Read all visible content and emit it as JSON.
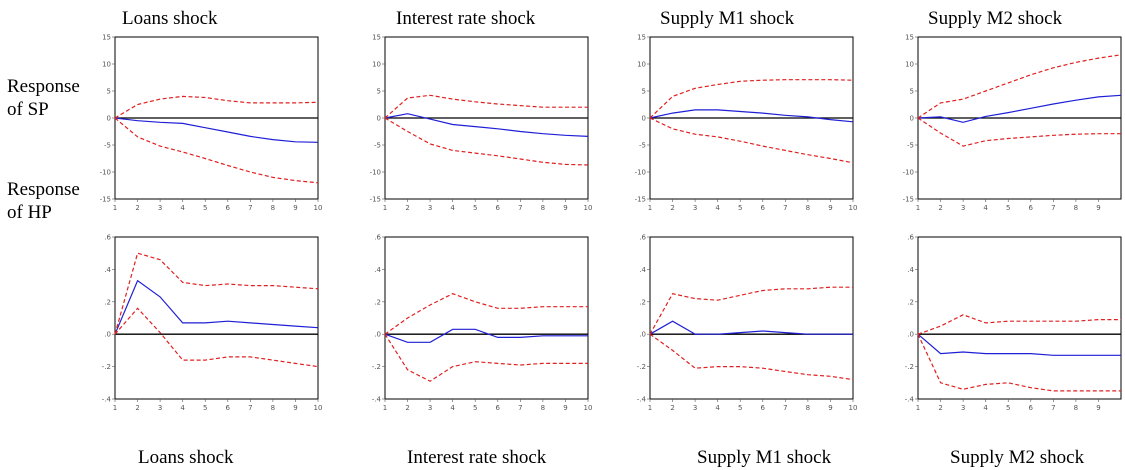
{
  "column_titles": [
    "Loans shock",
    "Interest rate shock",
    "Supply M1 shock",
    "Supply M2 shock"
  ],
  "bottom_titles": [
    "Loans shock",
    "Interest rate shock",
    "Supply M1 shock",
    "Supply M2 shock"
  ],
  "row_labels": [
    {
      "line1": "Response",
      "line2": "of SP"
    },
    {
      "line1": "Response",
      "line2": "of HP"
    }
  ],
  "colors": {
    "response": "#1f1fd6",
    "band": "#e02020",
    "zero_line": "#000000",
    "frame": "#000000"
  },
  "chart_data": [
    {
      "type": "line",
      "row": "Response of SP",
      "column": "Loans shock",
      "x": [
        1,
        2,
        3,
        4,
        5,
        6,
        7,
        8,
        9,
        10
      ],
      "xticks": [
        "1",
        "2",
        "3",
        "4",
        "5",
        "6",
        "7",
        "8",
        "9",
        "10"
      ],
      "yticks": [
        "15",
        "10",
        "5",
        "0",
        "-5",
        "-10",
        "-15"
      ],
      "ylim": [
        -15,
        15
      ],
      "series": [
        {
          "role": "response",
          "values": [
            0,
            -0.5,
            -0.8,
            -1.0,
            -1.8,
            -2.6,
            -3.4,
            -4.0,
            -4.4,
            -4.5
          ]
        },
        {
          "role": "upper",
          "values": [
            0,
            2.5,
            3.5,
            4.0,
            3.8,
            3.2,
            2.8,
            2.8,
            2.8,
            2.9
          ]
        },
        {
          "role": "lower",
          "values": [
            0,
            -3.5,
            -5.2,
            -6.3,
            -7.5,
            -8.8,
            -10.0,
            -11.0,
            -11.6,
            -12.0
          ]
        }
      ]
    },
    {
      "type": "line",
      "row": "Response of SP",
      "column": "Interest rate shock",
      "x": [
        1,
        2,
        3,
        4,
        5,
        6,
        7,
        8,
        9,
        10
      ],
      "xticks": [
        "1",
        "2",
        "3",
        "4",
        "5",
        "6",
        "7",
        "8",
        "9",
        "10"
      ],
      "yticks": [
        "15",
        "10",
        "5",
        "0",
        "-5",
        "-10",
        "-15"
      ],
      "ylim": [
        -15,
        15
      ],
      "series": [
        {
          "role": "response",
          "values": [
            0,
            0.8,
            -0.2,
            -1.2,
            -1.6,
            -2.0,
            -2.5,
            -2.9,
            -3.2,
            -3.4
          ]
        },
        {
          "role": "upper",
          "values": [
            0,
            3.7,
            4.2,
            3.5,
            3.0,
            2.6,
            2.3,
            2.0,
            2.0,
            2.0
          ]
        },
        {
          "role": "lower",
          "values": [
            0,
            -2.5,
            -4.8,
            -6.0,
            -6.5,
            -7.0,
            -7.6,
            -8.2,
            -8.6,
            -8.7
          ]
        }
      ]
    },
    {
      "type": "line",
      "row": "Response of SP",
      "column": "Supply M1 shock",
      "x": [
        1,
        2,
        3,
        4,
        5,
        6,
        7,
        8,
        9,
        10
      ],
      "xticks": [
        "1",
        "2",
        "3",
        "4",
        "5",
        "6",
        "7",
        "8",
        "9",
        "10"
      ],
      "yticks": [
        "15",
        "10",
        "5",
        "0",
        "-5",
        "-10",
        "-15"
      ],
      "ylim": [
        -15,
        15
      ],
      "series": [
        {
          "role": "response",
          "values": [
            0,
            0.9,
            1.5,
            1.5,
            1.2,
            0.9,
            0.5,
            0.2,
            -0.3,
            -0.7
          ]
        },
        {
          "role": "upper",
          "values": [
            0,
            4.0,
            5.5,
            6.2,
            6.8,
            7.0,
            7.1,
            7.1,
            7.1,
            7.0
          ]
        },
        {
          "role": "lower",
          "values": [
            0,
            -2.0,
            -3.0,
            -3.5,
            -4.3,
            -5.2,
            -6.0,
            -6.8,
            -7.5,
            -8.3
          ]
        }
      ]
    },
    {
      "type": "line",
      "row": "Response of SP",
      "column": "Supply M2 shock",
      "x": [
        1,
        2,
        3,
        4,
        5,
        6,
        7,
        8,
        9,
        10
      ],
      "xticks": [
        "1",
        "2",
        "3",
        "4",
        "5",
        "6",
        "7",
        "8",
        "9"
      ],
      "yticks": [
        "15",
        "10",
        "5",
        "0",
        "-5",
        "-10",
        "-15"
      ],
      "ylim": [
        -15,
        15
      ],
      "series": [
        {
          "role": "response",
          "values": [
            0,
            0.2,
            -0.8,
            0.3,
            1.0,
            1.8,
            2.6,
            3.3,
            3.9,
            4.2
          ]
        },
        {
          "role": "upper",
          "values": [
            0,
            2.8,
            3.5,
            5.0,
            6.5,
            8.0,
            9.3,
            10.3,
            11.1,
            11.7
          ]
        },
        {
          "role": "lower",
          "values": [
            0,
            -2.8,
            -5.2,
            -4.2,
            -3.8,
            -3.5,
            -3.2,
            -3.0,
            -2.9,
            -2.9
          ]
        }
      ]
    },
    {
      "type": "line",
      "row": "Response of HP",
      "column": "Loans shock",
      "x": [
        1,
        2,
        3,
        4,
        5,
        6,
        7,
        8,
        9,
        10
      ],
      "xticks": [
        "1",
        "2",
        "3",
        "4",
        "5",
        "6",
        "7",
        "8",
        "9",
        "10"
      ],
      "yticks": [
        ".6",
        ".4",
        ".2",
        ".0",
        "-.2",
        "-.4"
      ],
      "ylim": [
        -0.4,
        0.6
      ],
      "series": [
        {
          "role": "response",
          "values": [
            0,
            0.33,
            0.23,
            0.07,
            0.07,
            0.08,
            0.07,
            0.06,
            0.05,
            0.04
          ]
        },
        {
          "role": "upper",
          "values": [
            0,
            0.5,
            0.46,
            0.32,
            0.3,
            0.31,
            0.3,
            0.3,
            0.29,
            0.28
          ]
        },
        {
          "role": "lower",
          "values": [
            0,
            0.16,
            0.01,
            -0.16,
            -0.16,
            -0.14,
            -0.14,
            -0.16,
            -0.18,
            -0.2
          ]
        }
      ]
    },
    {
      "type": "line",
      "row": "Response of HP",
      "column": "Interest rate shock",
      "x": [
        1,
        2,
        3,
        4,
        5,
        6,
        7,
        8,
        9,
        10
      ],
      "xticks": [
        "1",
        "2",
        "3",
        "4",
        "5",
        "6",
        "7",
        "8",
        "9",
        "10"
      ],
      "yticks": [
        ".6",
        ".4",
        ".2",
        ".0",
        "-.2",
        "-.4"
      ],
      "ylim": [
        -0.4,
        0.6
      ],
      "series": [
        {
          "role": "response",
          "values": [
            0,
            -0.05,
            -0.05,
            0.03,
            0.03,
            -0.02,
            -0.02,
            -0.01,
            -0.01,
            -0.01
          ]
        },
        {
          "role": "upper",
          "values": [
            0,
            0.1,
            0.18,
            0.25,
            0.2,
            0.16,
            0.16,
            0.17,
            0.17,
            0.17
          ]
        },
        {
          "role": "lower",
          "values": [
            0,
            -0.22,
            -0.29,
            -0.2,
            -0.17,
            -0.18,
            -0.19,
            -0.18,
            -0.18,
            -0.18
          ]
        }
      ]
    },
    {
      "type": "line",
      "row": "Response of HP",
      "column": "Supply M1 shock",
      "x": [
        1,
        2,
        3,
        4,
        5,
        6,
        7,
        8,
        9,
        10
      ],
      "xticks": [
        "1",
        "2",
        "3",
        "4",
        "5",
        "6",
        "7",
        "8",
        "9",
        "10"
      ],
      "yticks": [
        ".6",
        ".4",
        ".2",
        ".0",
        "-.2",
        "-.4"
      ],
      "ylim": [
        -0.4,
        0.6
      ],
      "series": [
        {
          "role": "response",
          "values": [
            0,
            0.08,
            0.0,
            0.0,
            0.01,
            0.02,
            0.01,
            0.0,
            0.0,
            0.0
          ]
        },
        {
          "role": "upper",
          "values": [
            0,
            0.25,
            0.22,
            0.21,
            0.24,
            0.27,
            0.28,
            0.28,
            0.29,
            0.29
          ]
        },
        {
          "role": "lower",
          "values": [
            0,
            -0.1,
            -0.21,
            -0.2,
            -0.2,
            -0.21,
            -0.23,
            -0.25,
            -0.26,
            -0.28
          ]
        }
      ]
    },
    {
      "type": "line",
      "row": "Response of HP",
      "column": "Supply M2 shock",
      "x": [
        1,
        2,
        3,
        4,
        5,
        6,
        7,
        8,
        9,
        10
      ],
      "xticks": [
        "1",
        "2",
        "3",
        "4",
        "5",
        "6",
        "7",
        "8",
        "9"
      ],
      "yticks": [
        ".6",
        ".4",
        ".2",
        ".0",
        "-.2",
        "-.4"
      ],
      "ylim": [
        -0.4,
        0.6
      ],
      "series": [
        {
          "role": "response",
          "values": [
            0,
            -0.12,
            -0.11,
            -0.12,
            -0.12,
            -0.12,
            -0.13,
            -0.13,
            -0.13,
            -0.13
          ]
        },
        {
          "role": "upper",
          "values": [
            0,
            0.05,
            0.12,
            0.07,
            0.08,
            0.08,
            0.08,
            0.08,
            0.09,
            0.09
          ]
        },
        {
          "role": "lower",
          "values": [
            0,
            -0.3,
            -0.34,
            -0.31,
            -0.3,
            -0.33,
            -0.35,
            -0.35,
            -0.35,
            -0.35
          ]
        }
      ]
    }
  ]
}
